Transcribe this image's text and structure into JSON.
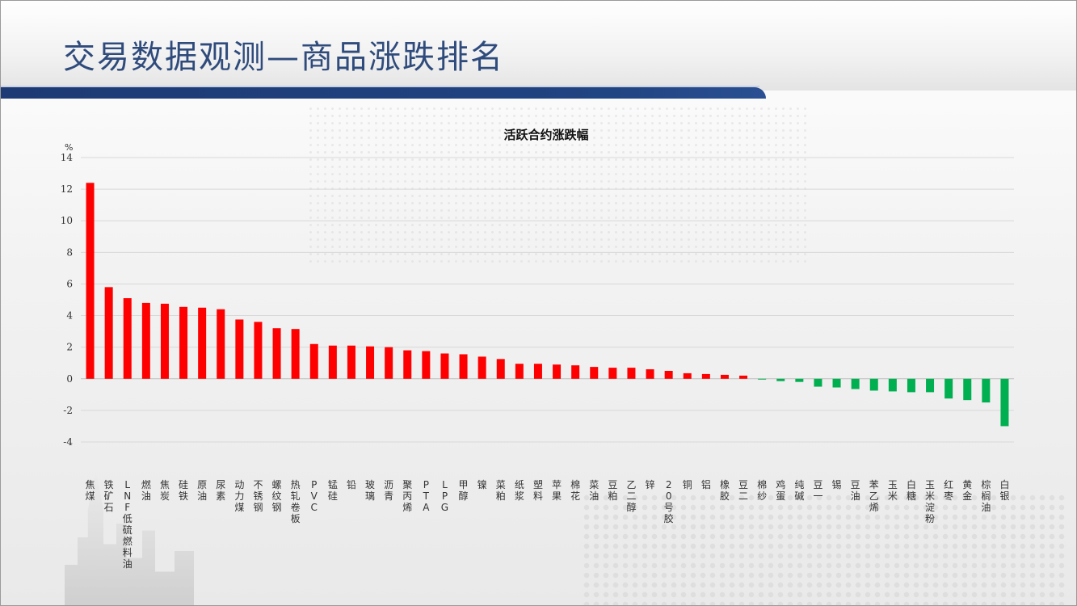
{
  "page": {
    "title": "交易数据观测—商品涨跌排名"
  },
  "colors": {
    "up": "#ff0000",
    "down": "#00b050",
    "title": "#2f4b7c",
    "band": "#1d3a74"
  },
  "chart_data": {
    "type": "bar",
    "title": "活跃合约涨跌幅",
    "ylabel": "%",
    "ylim": [
      -4,
      14
    ],
    "yticks": [
      14,
      12,
      10,
      8,
      6,
      4,
      2,
      0,
      -2,
      -4
    ],
    "grid": true,
    "legend": "none",
    "categories": [
      "焦煤",
      "铁矿石",
      "LNF低硫燃料油",
      "燃油",
      "焦炭",
      "硅铁",
      "原油",
      "尿素",
      "动力煤",
      "不锈钢",
      "螺纹钢",
      "热轧卷板",
      "PVC",
      "锰硅",
      "铅",
      "玻璃",
      "沥青",
      "聚丙烯",
      "PTA",
      "LPG",
      "甲醇",
      "镍",
      "菜粕",
      "纸浆",
      "塑料",
      "苹果",
      "棉花",
      "菜油",
      "豆粕",
      "乙二醇",
      "锌",
      "20号胶",
      "铜",
      "铝",
      "橡胶",
      "豆二",
      "棉纱",
      "鸡蛋",
      "纯碱",
      "豆一",
      "锡",
      "豆油",
      "苯乙烯",
      "玉米",
      "白糖",
      "玉米淀粉",
      "红枣",
      "黄金",
      "棕榈油",
      "白银"
    ],
    "values": [
      12.4,
      5.8,
      5.1,
      4.8,
      4.75,
      4.55,
      4.5,
      4.4,
      3.75,
      3.6,
      3.2,
      3.15,
      2.2,
      2.1,
      2.1,
      2.05,
      2.0,
      1.8,
      1.75,
      1.6,
      1.55,
      1.4,
      1.25,
      0.95,
      0.95,
      0.9,
      0.85,
      0.75,
      0.7,
      0.7,
      0.6,
      0.5,
      0.35,
      0.3,
      0.25,
      0.2,
      -0.05,
      -0.15,
      -0.2,
      -0.5,
      -0.55,
      -0.65,
      -0.75,
      -0.8,
      -0.85,
      -0.85,
      -1.25,
      -1.35,
      -1.5,
      -3.0
    ]
  }
}
